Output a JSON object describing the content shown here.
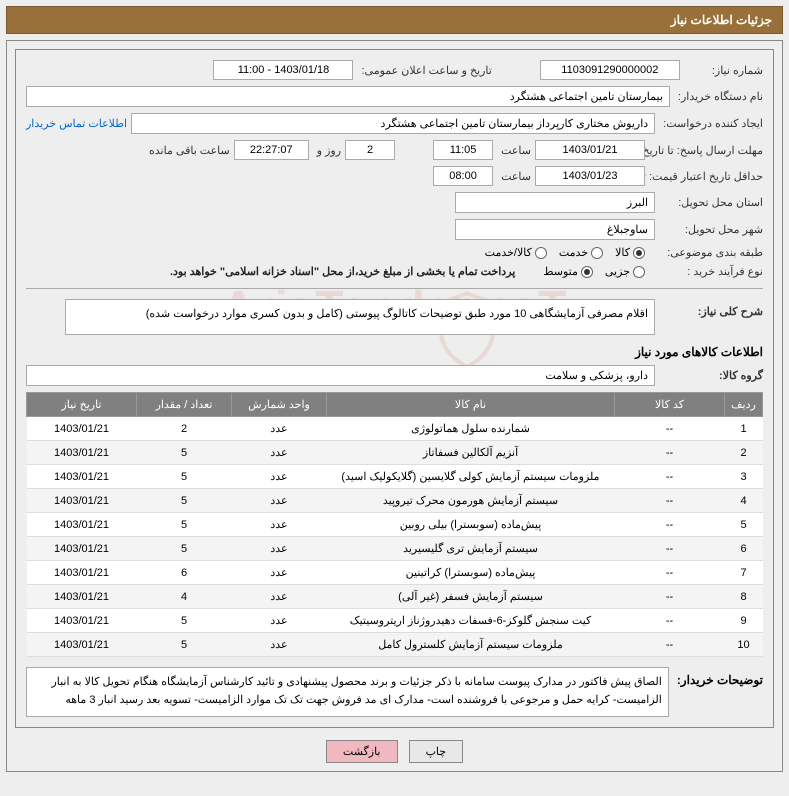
{
  "title": "جزئیات اطلاعات نیاز",
  "labels": {
    "need_number": "شماره نیاز:",
    "announce_datetime": "تاریخ و ساعت اعلان عمومی:",
    "buyer_org": "نام دستگاه خریدار:",
    "requester": "ایجاد کننده درخواست:",
    "buyer_contact": "اطلاعات تماس خریدار",
    "response_deadline": "مهلت ارسال پاسخ: تا تاریخ:",
    "time_word": "ساعت",
    "days_and": "روز و",
    "remaining": "ساعت باقی مانده",
    "min_validity": "حداقل تاریخ اعتبار قیمت: تا تاریخ:",
    "delivery_province": "استان محل تحویل:",
    "delivery_city": "شهر محل تحویل:",
    "subject_class": "طبقه بندی موضوعی:",
    "purchase_process": "نوع فرآیند خرید :",
    "payment_note": "پرداخت تمام یا بخشی از مبلغ خرید،از محل \"اسناد خزانه اسلامی\" خواهد بود.",
    "general_desc": "شرح کلی نیاز:",
    "goods_info": "اطلاعات کالاهای مورد نیاز",
    "goods_group": "گروه کالا:",
    "buyer_notes": "توضیحات خریدار:"
  },
  "values": {
    "need_number": "1103091290000002",
    "announce_datetime": "1403/01/18 - 11:00",
    "buyer_org": "بیمارستان تامین اجتماعی هشتگرد",
    "requester": "داریوش مختاری کارپرداز بیمارستان تامین اجتماعی هشتگرد",
    "resp_date": "1403/01/21",
    "resp_time": "11:05",
    "days_left": "2",
    "timer": "22:27:07",
    "valid_date": "1403/01/23",
    "valid_time": "08:00",
    "province": "البرز",
    "city": "ساوجبلاغ",
    "general_desc": "اقلام مصرفی آزمایشگاهی 10 مورد طبق توضیحات کاتالوگ پیوستی (کامل و بدون کسری موارد درخواست شده)",
    "goods_group": "دارو، پزشکی و سلامت",
    "buyer_notes": "الصاق پیش فاکتور در مدارک پیوست سامانه با ذکر جزئیات و برند محصول پیشنهادی و تائید کارشناس آزمایشگاه هنگام تحویل کالا به انبار الزامیست- کرایه حمل و مرجوعی با فروشنده است- مدارک ای مد فروش جهت تک تک موارد الزامیست- تسویه بعد رسید انبار 3 ماهه"
  },
  "radios": {
    "subject": [
      {
        "label": "کالا",
        "checked": true
      },
      {
        "label": "خدمت",
        "checked": false
      },
      {
        "label": "کالا/خدمت",
        "checked": false
      }
    ],
    "process": [
      {
        "label": "جزیی",
        "checked": false
      },
      {
        "label": "متوسط",
        "checked": true
      }
    ]
  },
  "table": {
    "headers": [
      "ردیف",
      "کد کالا",
      "نام کالا",
      "واحد شمارش",
      "تعداد / مقدار",
      "تاریخ نیاز"
    ],
    "rows": [
      [
        "1",
        "--",
        "شمارنده سلول هماتولوژی",
        "عدد",
        "2",
        "1403/01/21"
      ],
      [
        "2",
        "--",
        "آنزیم آلکالین فسفاتاز",
        "عدد",
        "5",
        "1403/01/21"
      ],
      [
        "3",
        "--",
        "ملزومات سیستم آزمایش کولی گلایسین (گلایکولیک اسید)",
        "عدد",
        "5",
        "1403/01/21"
      ],
      [
        "4",
        "--",
        "سیستم آزمایش هورمون محرک تیروپید",
        "عدد",
        "5",
        "1403/01/21"
      ],
      [
        "5",
        "--",
        "پیش‌ماده (سوبسترا) بیلی روبین",
        "عدد",
        "5",
        "1403/01/21"
      ],
      [
        "6",
        "--",
        "سیستم آزمایش تری گلیسیرید",
        "عدد",
        "5",
        "1403/01/21"
      ],
      [
        "7",
        "--",
        "پیش‌ماده (سوبسترا) کراتینین",
        "عدد",
        "6",
        "1403/01/21"
      ],
      [
        "8",
        "--",
        "سیستم آزمایش فسفر (غیر آلی)",
        "عدد",
        "4",
        "1403/01/21"
      ],
      [
        "9",
        "--",
        "کیت سنجش گلوکز-6-فسفات دهیدروژناز اریتروسیتیک",
        "عدد",
        "5",
        "1403/01/21"
      ],
      [
        "10",
        "--",
        "ملزومات سیستم آزمایش کلسترول کامل",
        "عدد",
        "5",
        "1403/01/21"
      ]
    ]
  },
  "buttons": {
    "print": "چاپ",
    "back": "بازگشت"
  },
  "watermark": "AriaTender.neT"
}
